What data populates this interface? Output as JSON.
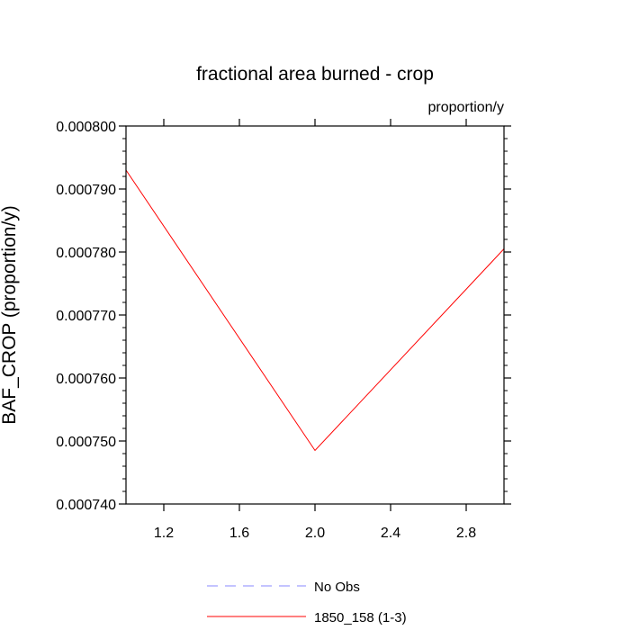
{
  "chart_data": {
    "type": "line",
    "title": "fractional area burned - crop",
    "units_label": "proportion/y",
    "ylabel": "BAF_CROP  (proportion/y)",
    "xlabel": "",
    "xlim": [
      1.0,
      3.0
    ],
    "ylim": [
      0.00074,
      0.0008
    ],
    "x_ticks": [
      1.2,
      1.6,
      2.0,
      2.4,
      2.8
    ],
    "x_tick_labels": [
      "1.2",
      "1.6",
      "2.0",
      "2.4",
      "2.8"
    ],
    "y_ticks": [
      0.00074,
      0.00075,
      0.00076,
      0.00077,
      0.00078,
      0.00079,
      0.0008
    ],
    "y_tick_labels": [
      "0.000740",
      "0.000750",
      "0.000760",
      "0.000770",
      "0.000780",
      "0.000790",
      "0.000800"
    ],
    "grid": false,
    "legend_position": "bottom",
    "series": [
      {
        "name": "No Obs",
        "color": "#8a8aff",
        "dash": true,
        "x": [],
        "y": []
      },
      {
        "name": "1850_158 (1-3)",
        "color": "#ff0000",
        "dash": false,
        "x": [
          1.0,
          2.0,
          3.0
        ],
        "y": [
          0.000793,
          0.0007485,
          0.0007805
        ]
      }
    ]
  }
}
